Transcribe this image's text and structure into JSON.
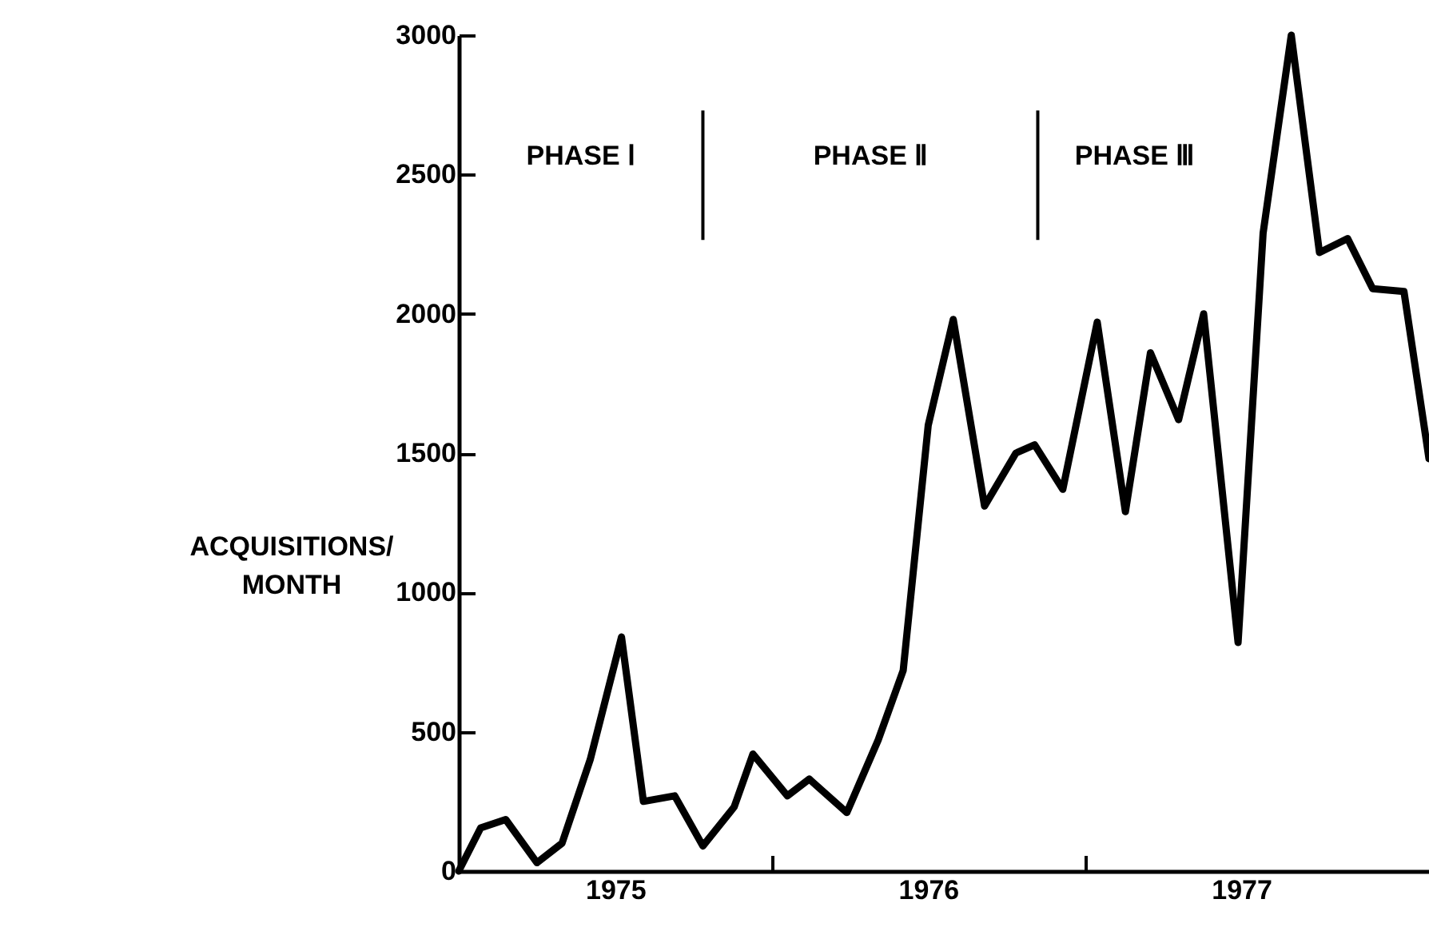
{
  "chart_data": {
    "type": "line",
    "ylabel": "ACQUISITIONS/\nMONTH",
    "x": [
      1975.0,
      1975.07,
      1975.15,
      1975.25,
      1975.33,
      1975.42,
      1975.52,
      1975.59,
      1975.69,
      1975.78,
      1975.88,
      1975.94,
      1976.05,
      1976.12,
      1976.24,
      1976.34,
      1976.42,
      1976.5,
      1976.58,
      1976.68,
      1976.78,
      1976.84,
      1976.93,
      1977.04,
      1977.13,
      1977.21,
      1977.3,
      1977.38,
      1977.49,
      1977.57,
      1977.66,
      1977.75,
      1977.84,
      1977.92,
      1978.02,
      1978.1
    ],
    "series": [
      {
        "color": "#000000",
        "values": [
          0,
          155,
          185,
          30,
          100,
          400,
          840,
          250,
          270,
          90,
          230,
          420,
          270,
          330,
          210,
          470,
          720,
          1600,
          1980,
          1310,
          1500,
          1530,
          1370,
          1970,
          1290,
          1860,
          1620,
          2000,
          820,
          2290,
          3000,
          2220,
          2270,
          2090,
          2080,
          1480
        ]
      }
    ],
    "xlim": [
      1975.0,
      1978.1
    ],
    "xticks": [
      {
        "value": 1975.5,
        "label": "1975"
      },
      {
        "value": 1976,
        "label": null
      },
      {
        "value": 1976.5,
        "label": "1976"
      },
      {
        "value": 1977,
        "label": null
      },
      {
        "value": 1977.5,
        "label": "1977"
      }
    ],
    "ylim": [
      0,
      3000
    ],
    "yticks": [
      0,
      500,
      1000,
      1500,
      2000,
      2500,
      3000
    ],
    "ref_lines": [
      {
        "axis": "x",
        "value": 1975.78,
        "label": null
      },
      {
        "axis": "x",
        "value": 1976.85,
        "label": null
      }
    ],
    "annotations": [
      "PHASE Ⅰ",
      "PHASE Ⅱ",
      "PHASE Ⅲ"
    ],
    "grid": false,
    "marker": "none",
    "line_style": "solid"
  }
}
